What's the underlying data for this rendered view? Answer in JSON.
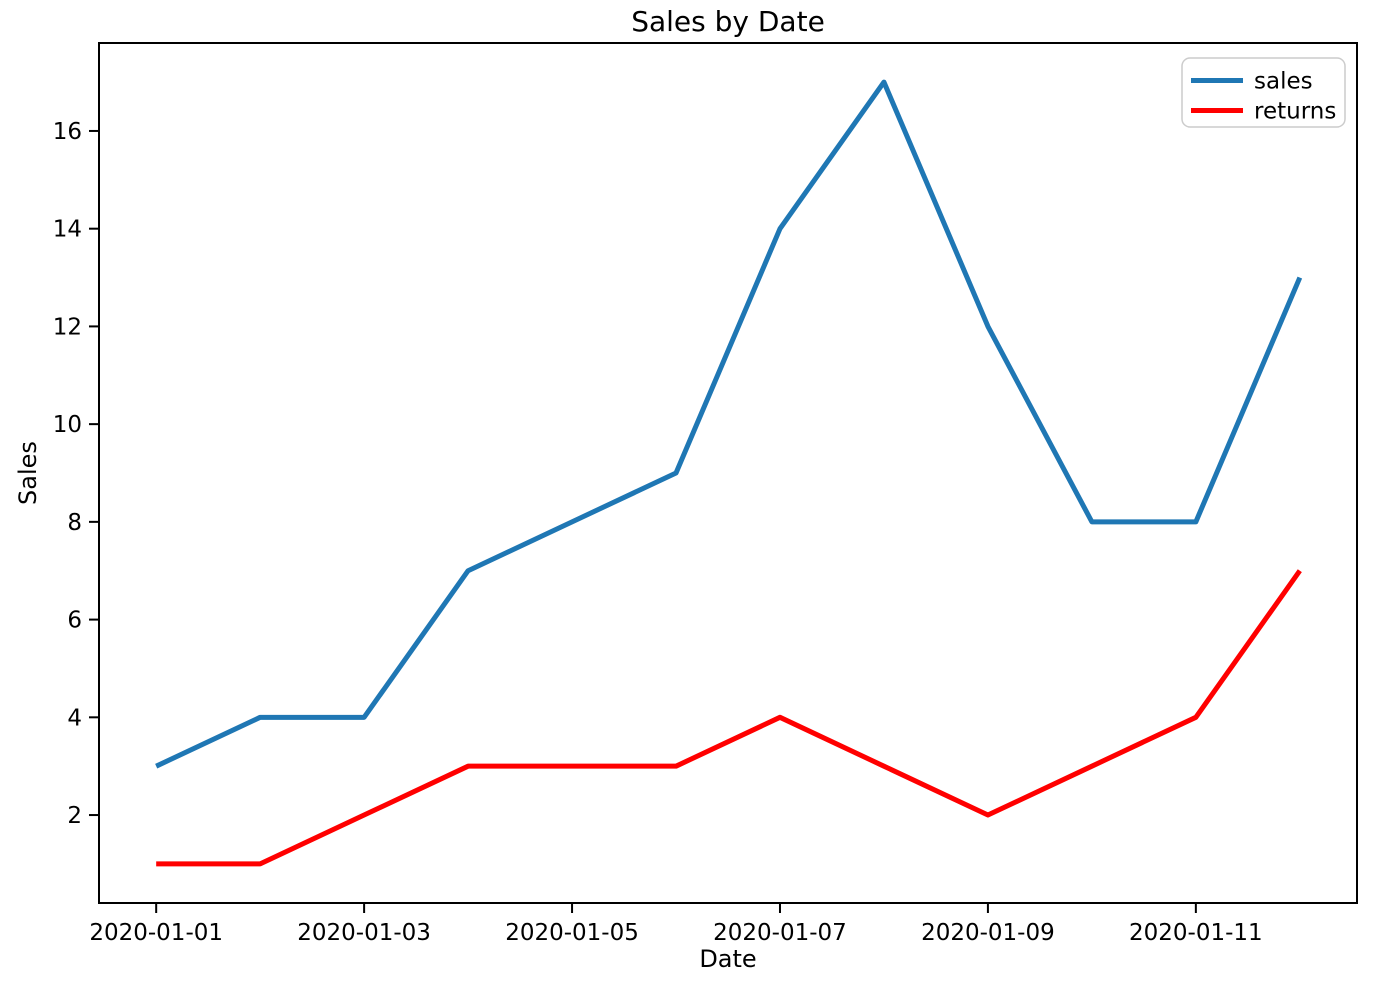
{
  "chart_data": {
    "type": "line",
    "title": "Sales by Date",
    "xlabel": "Date",
    "ylabel": "Sales",
    "x": [
      "2020-01-01",
      "2020-01-02",
      "2020-01-03",
      "2020-01-04",
      "2020-01-05",
      "2020-01-06",
      "2020-01-07",
      "2020-01-08",
      "2020-01-09",
      "2020-01-10",
      "2020-01-11",
      "2020-01-12"
    ],
    "series": [
      {
        "name": "sales",
        "color": "#1f77b4",
        "values": [
          3,
          4,
          4,
          7,
          8,
          9,
          14,
          17,
          12,
          8,
          8,
          13
        ]
      },
      {
        "name": "returns",
        "color": "#ff0000",
        "values": [
          1,
          1,
          2,
          3,
          3,
          3,
          4,
          3,
          2,
          3,
          4,
          7
        ]
      }
    ],
    "xtick_labels": [
      "2020-01-01",
      "2020-01-03",
      "2020-01-05",
      "2020-01-07",
      "2020-01-09",
      "2020-01-11"
    ],
    "xtick_days": [
      1,
      3,
      5,
      7,
      9,
      11
    ],
    "ytick_values": [
      2,
      4,
      6,
      8,
      10,
      12,
      14,
      16
    ],
    "xlim_days": [
      0.45,
      12.55
    ],
    "ylim": [
      0.2,
      17.8
    ],
    "legend_position": "upper right",
    "grid": false,
    "axis_color": "#000000",
    "legend_border_color": "#cccccc"
  }
}
